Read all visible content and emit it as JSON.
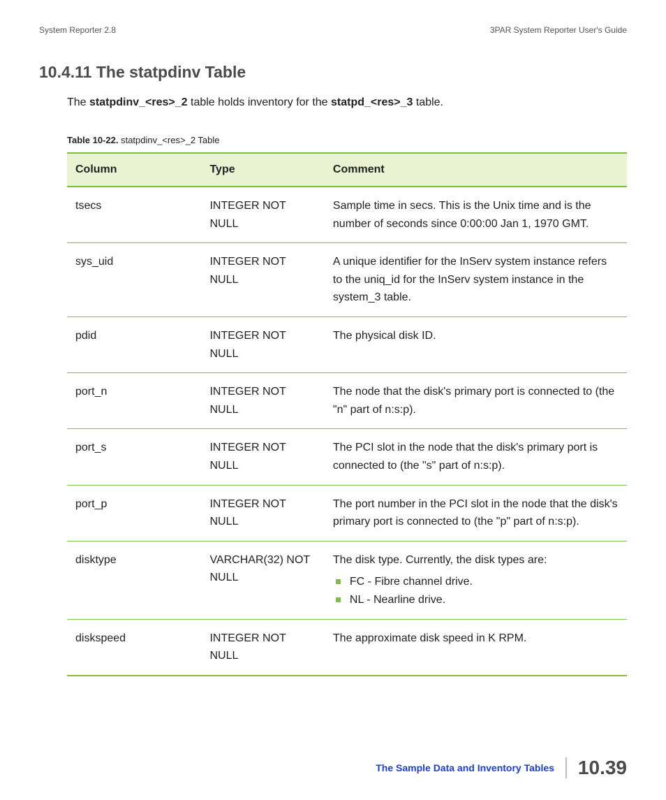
{
  "header": {
    "left": "System Reporter 2.8",
    "right": "3PAR System Reporter User's Guide"
  },
  "section": {
    "heading": "10.4.11 The statpdinv Table",
    "intro_prefix": "The ",
    "intro_bold1": "statpdinv_<res>_2",
    "intro_mid": " table holds inventory for the ",
    "intro_bold2": "statpd_<res>_3",
    "intro_suffix": " table."
  },
  "caption": {
    "label": "Table 10-22.",
    "text": "  statpdinv_<res>_2 Table"
  },
  "table": {
    "columns": [
      "Column",
      "Type",
      "Comment"
    ],
    "rows": [
      {
        "column": "tsecs",
        "type": "INTEGER NOT NULL",
        "comment": "Sample time in secs. This is the Unix time and is the number of seconds since 0:00:00 Jan 1, 1970 GMT."
      },
      {
        "column": "sys_uid",
        "type": "INTEGER NOT NULL",
        "comment": "A unique identifier for the InServ system instance refers to the uniq_id for the InServ system instance in the system_3 table."
      },
      {
        "column": "pdid",
        "type": "INTEGER NOT NULL",
        "comment": "The physical disk ID."
      },
      {
        "column": "port_n",
        "type": "INTEGER NOT NULL",
        "comment": "The node that the disk's primary port is connected to (the \"n\" part of n:s:p)."
      },
      {
        "column": "port_s",
        "type": "INTEGER NOT NULL",
        "comment": "The PCI slot in the node that the disk's primary port is connected to (the \"s\" part of n:s:p)."
      },
      {
        "column": "port_p",
        "type": "INTEGER NOT NULL",
        "comment": "The port number in the PCI slot in the node that the disk's primary port is connected to (the \"p\" part of n:s:p)."
      },
      {
        "column": "disktype",
        "type": "VARCHAR(32) NOT NULL",
        "comment": "The disk type. Currently, the disk types are:",
        "bullets": [
          "FC - Fibre channel drive.",
          "NL - Nearline drive."
        ]
      },
      {
        "column": "diskspeed",
        "type": "INTEGER NOT NULL",
        "comment": "The approximate disk speed in K RPM."
      }
    ]
  },
  "footer": {
    "link": "The Sample Data and Inventory Tables",
    "page": "10.39"
  },
  "style": {
    "accent_green": "#7ac142",
    "header_bg": "#e9f3d1",
    "link_blue": "#1a3fd1"
  }
}
